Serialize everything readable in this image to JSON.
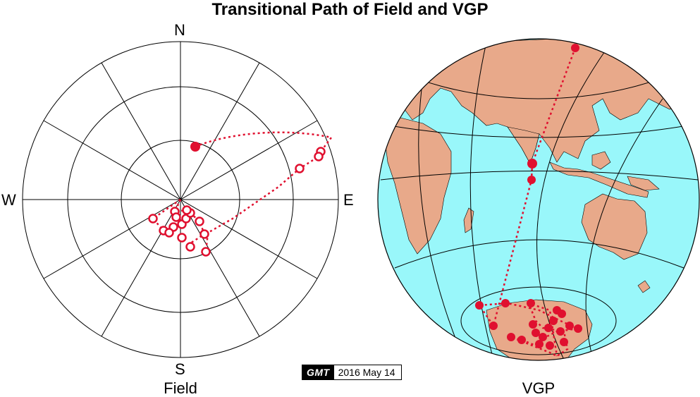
{
  "title": "Transitional Path of Field and VGP",
  "field_panel": {
    "label": "Field",
    "directions": {
      "north": "N",
      "south": "S",
      "east": "E",
      "west": "W"
    },
    "path_color": "#e0102f"
  },
  "vgp_panel": {
    "label": "VGP",
    "ocean_color": "#99f7fa",
    "land_color": "#e8a98a",
    "path_color": "#e0102f"
  },
  "gmt_stamp": {
    "logo": "GMT",
    "date": "2016 May 14"
  }
}
